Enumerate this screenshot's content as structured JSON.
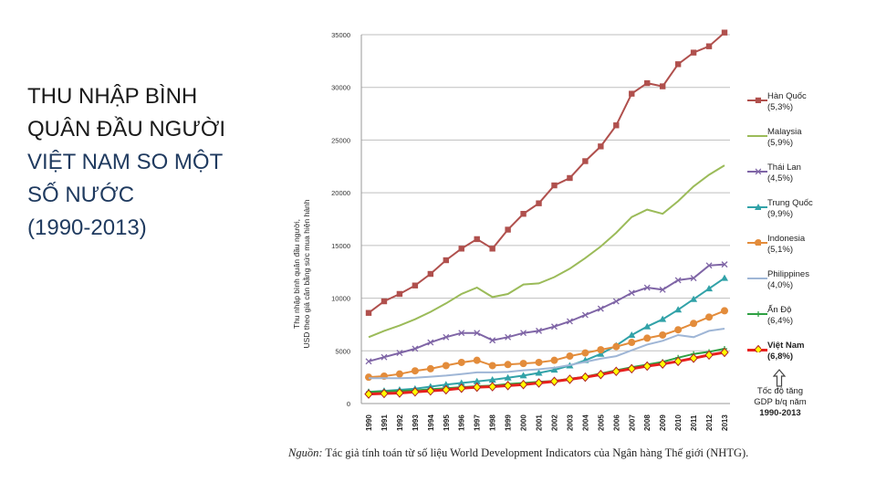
{
  "title": {
    "line1": "THU NHẬP BÌNH",
    "line2": "QUÂN ĐẦU NGƯỜI",
    "line3": "VIỆT NAM SO MỘT",
    "line4": "SỐ NƯỚC",
    "line5": "(1990-2013)"
  },
  "colors": {
    "title_dark": "#1a1a1a",
    "title_blue": "#1f3a5f",
    "grid": "#bfbfbf"
  },
  "chart_data": {
    "type": "line",
    "title": "",
    "ylabel_line1": "Thu nhập bình quân đầu người,",
    "ylabel_line2": "USD theo giá cân bằng sức mua hiện hành",
    "xlabel": "",
    "ylim": [
      0,
      35000
    ],
    "yticks": [
      0,
      5000,
      10000,
      15000,
      20000,
      25000,
      30000,
      35000
    ],
    "ytick_labels": [
      "0",
      "5000",
      "10000",
      "15000",
      "20000",
      "25000",
      "30000",
      "35000"
    ],
    "x": [
      "1990",
      "1991",
      "1992",
      "1993",
      "1994",
      "1995",
      "1996",
      "1997",
      "1998",
      "1999",
      "2000",
      "2001",
      "2002",
      "2003",
      "2004",
      "2005",
      "2006",
      "2007",
      "2008",
      "2009",
      "2010",
      "2011",
      "2012",
      "2013"
    ],
    "series": [
      {
        "name": "Hàn Quốc",
        "rate": "(5,3%)",
        "color": "#b0504d",
        "marker": "square",
        "values": [
          8600,
          9700,
          10400,
          11200,
          12300,
          13600,
          14700,
          15600,
          14700,
          16500,
          18000,
          19000,
          20700,
          21400,
          23000,
          24400,
          26400,
          29400,
          30400,
          30100,
          32200,
          33300,
          33900,
          35200
        ]
      },
      {
        "name": "Malaysia",
        "rate": "(5,9%)",
        "color": "#9bbb59",
        "marker": "none",
        "values": [
          6300,
          6900,
          7400,
          8000,
          8700,
          9500,
          10400,
          11000,
          10100,
          10400,
          11300,
          11400,
          12000,
          12800,
          13800,
          14900,
          16200,
          17700,
          18400,
          18000,
          19200,
          20600,
          21700,
          22600
        ]
      },
      {
        "name": "Thái Lan",
        "rate": "(4,5%)",
        "color": "#7f65a6",
        "marker": "x",
        "values": [
          4000,
          4400,
          4800,
          5200,
          5800,
          6300,
          6700,
          6700,
          6000,
          6300,
          6700,
          6900,
          7300,
          7800,
          8400,
          9000,
          9700,
          10500,
          11000,
          10800,
          11700,
          11900,
          13100,
          13200
        ]
      },
      {
        "name": "Trung Quốc",
        "rate": "(9,9%)",
        "color": "#31a2a8",
        "marker": "triangle",
        "values": [
          1100,
          1200,
          1300,
          1400,
          1600,
          1800,
          1950,
          2100,
          2250,
          2450,
          2650,
          2900,
          3200,
          3600,
          4100,
          4700,
          5500,
          6500,
          7300,
          8000,
          8900,
          9900,
          10900,
          11900
        ]
      },
      {
        "name": "Indonesia",
        "rate": "(5,1%)",
        "color": "#e38c3b",
        "marker": "circle",
        "values": [
          2500,
          2600,
          2800,
          3100,
          3300,
          3600,
          3900,
          4100,
          3600,
          3700,
          3800,
          3900,
          4100,
          4500,
          4800,
          5100,
          5400,
          5800,
          6200,
          6500,
          7000,
          7600,
          8200,
          8800
        ]
      },
      {
        "name": "Philippines",
        "rate": "(4,0%)",
        "color": "#9fb6d6",
        "marker": "none",
        "values": [
          2400,
          2400,
          2400,
          2450,
          2550,
          2650,
          2800,
          2950,
          2950,
          3000,
          3150,
          3250,
          3400,
          3650,
          3950,
          4250,
          4500,
          5050,
          5600,
          5950,
          6500,
          6300,
          6900,
          7100
        ]
      },
      {
        "name": "Ấn Độ",
        "rate": "(6,4%)",
        "color": "#2ea043",
        "marker": "plus",
        "values": [
          1100,
          1150,
          1200,
          1250,
          1350,
          1450,
          1550,
          1650,
          1700,
          1850,
          1950,
          2050,
          2150,
          2350,
          2550,
          2850,
          3150,
          3450,
          3700,
          3950,
          4350,
          4700,
          4900,
          5200
        ]
      },
      {
        "name": "Việt Nam",
        "rate": "(6,8%)",
        "color": "#e8201f",
        "marker": "diamond",
        "bold": true,
        "values": [
          900,
          950,
          1000,
          1100,
          1200,
          1300,
          1450,
          1550,
          1600,
          1700,
          1800,
          1950,
          2100,
          2300,
          2500,
          2750,
          3050,
          3300,
          3550,
          3750,
          4000,
          4300,
          4600,
          4850
        ]
      }
    ]
  },
  "legend_note": {
    "line1": "Tốc độ tăng",
    "line2": "GDP b/q năm",
    "line3": "1990-2013"
  },
  "source": {
    "label": "Nguồn:",
    "text": " Tác giả tính toán từ số liệu World Development Indicators của Ngân hàng Thế giới (NHTG)."
  }
}
